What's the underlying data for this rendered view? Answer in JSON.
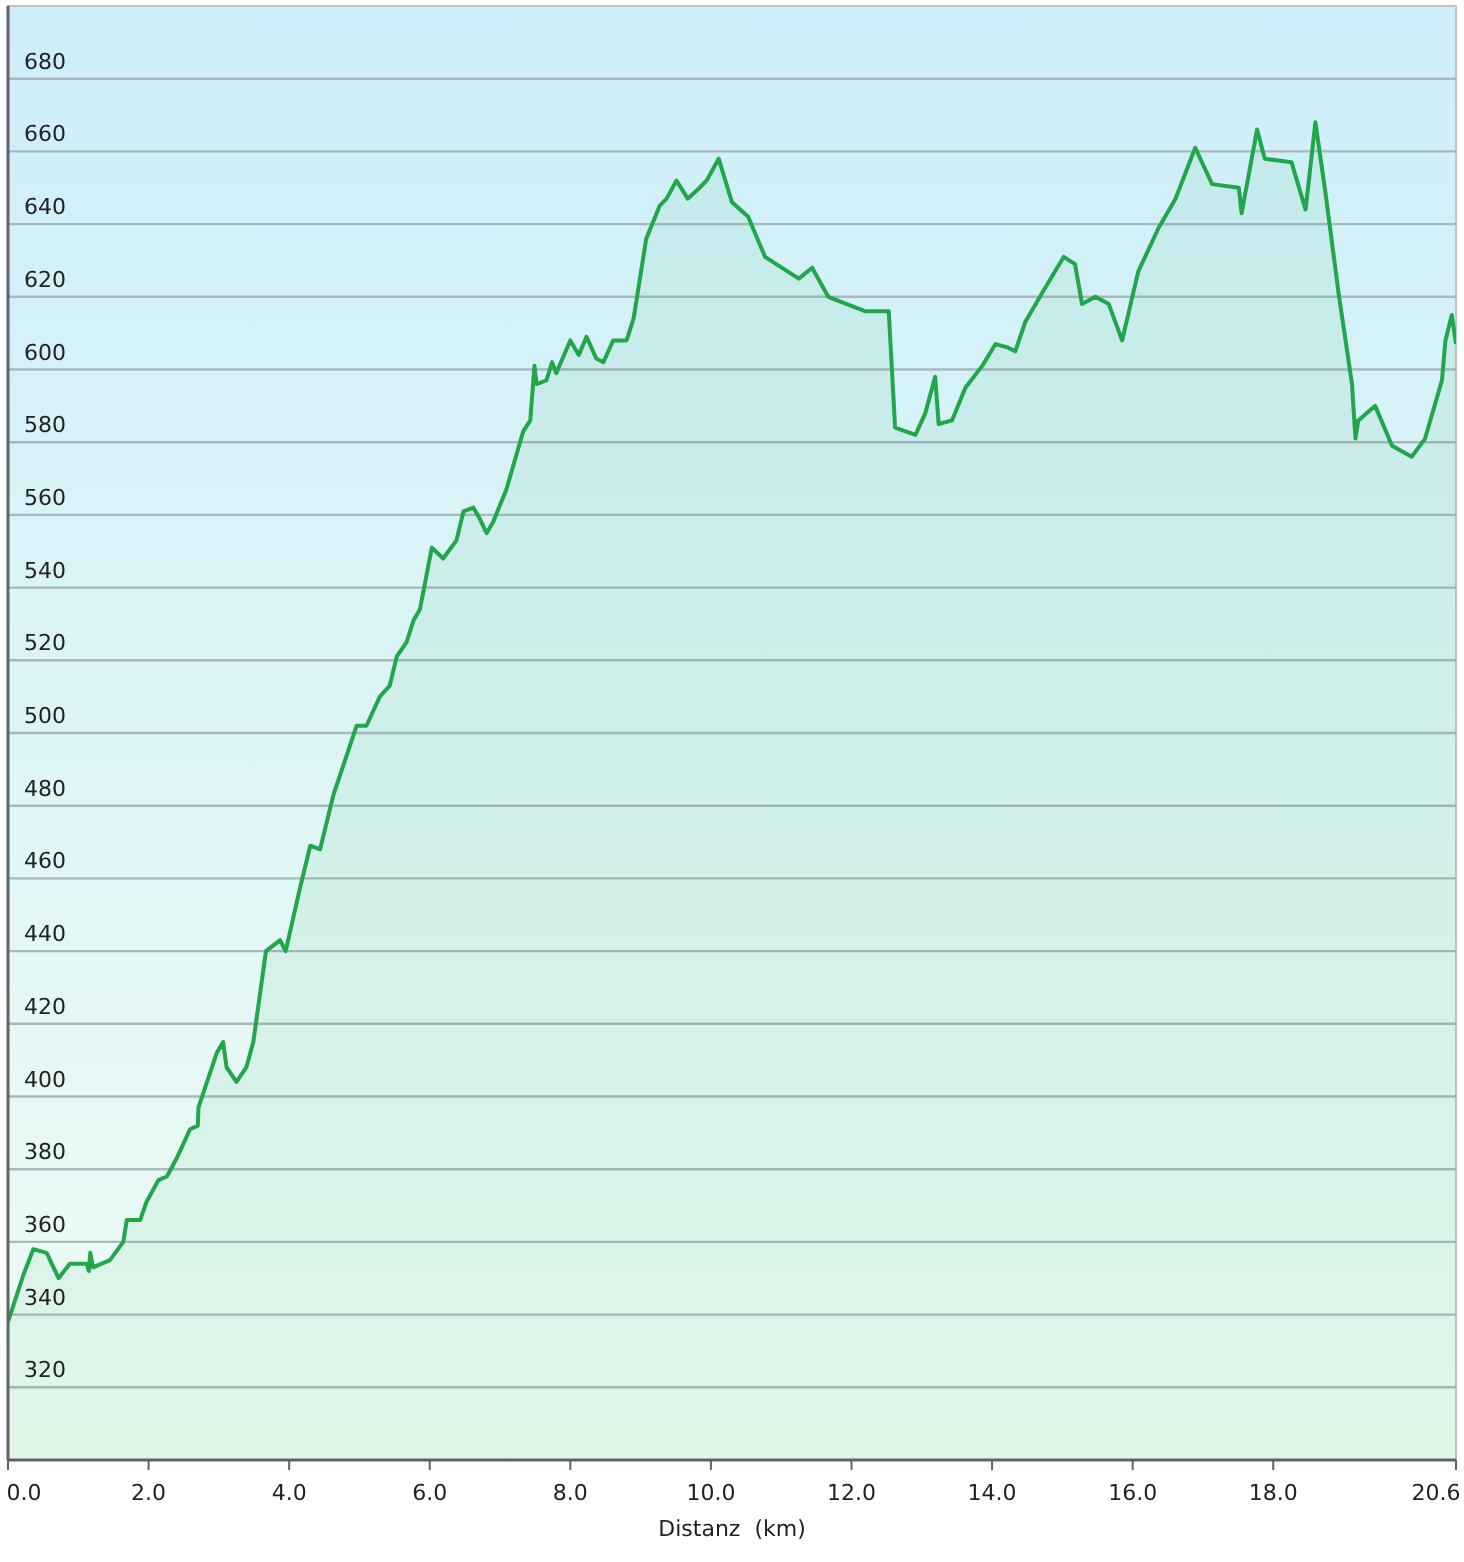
{
  "chart_data": {
    "type": "area",
    "xlabel": "Distanz  (km)",
    "x": [
      0,
      0.22,
      0.36,
      0.55,
      0.72,
      0.88,
      1.12,
      1.15,
      1.17,
      1.21,
      1.45,
      1.64,
      1.69,
      1.88,
      1.97,
      2.14,
      2.26,
      2.4,
      2.59,
      2.7,
      2.71,
      2.97,
      3.06,
      3.11,
      3.25,
      3.39,
      3.49,
      3.67,
      3.87,
      3.95,
      4.15,
      4.3,
      4.44,
      4.63,
      4.96,
      5.1,
      5.29,
      5.43,
      5.53,
      5.67,
      5.77,
      5.86,
      6.03,
      6.19,
      6.38,
      6.48,
      6.62,
      6.71,
      6.81,
      6.9,
      7.09,
      7.33,
      7.43,
      7.49,
      7.52,
      7.66,
      7.74,
      7.8,
      8,
      8.12,
      8.23,
      8.37,
      8.47,
      8.61,
      8.8,
      8.9,
      9.08,
      9.27,
      9.37,
      9.51,
      9.67,
      9.84,
      9.94,
      10.11,
      10.3,
      10.53,
      10.77,
      11.25,
      11.44,
      11.67,
      12.2,
      12.53,
      12.62,
      12.91,
      13.05,
      13.19,
      13.24,
      13.43,
      13.62,
      13.86,
      14.05,
      14.23,
      14.33,
      14.47,
      14.71,
      15.02,
      15.18,
      15.28,
      15.47,
      15.66,
      15.85,
      16.08,
      16.37,
      16.61,
      16.89,
      17.13,
      17.51,
      17.55,
      17.77,
      17.88,
      18.26,
      18.46,
      18.6,
      18.74,
      18.93,
      19.12,
      19.17,
      19.21,
      19.45,
      19.69,
      19.97,
      20.16,
      20.4,
      20.45,
      20.54,
      20.6
    ],
    "series": [
      {
        "color": "#22a64a",
        "values": [
          338,
          351,
          358,
          357,
          350,
          354,
          354,
          352,
          357,
          353,
          355,
          360,
          366,
          366,
          371,
          377,
          378,
          383,
          391,
          392,
          397,
          412,
          415,
          408,
          404,
          408,
          415,
          440,
          443,
          440,
          457,
          469,
          468,
          483,
          502,
          502,
          510,
          513,
          521,
          525,
          531,
          534,
          551,
          548,
          553,
          561,
          562,
          559,
          555,
          558,
          567,
          583,
          586,
          601,
          596,
          597,
          602,
          599,
          608,
          604,
          609,
          603,
          602,
          608,
          608,
          614,
          636,
          645,
          647,
          652,
          647,
          650,
          652,
          658,
          646,
          642,
          631,
          625,
          628,
          620,
          616,
          616,
          584,
          582,
          588,
          598,
          585,
          586,
          595,
          601,
          607,
          606,
          605,
          613,
          621,
          631,
          629,
          618,
          620,
          618,
          608,
          627,
          639,
          647,
          661,
          651,
          650,
          643,
          666,
          658,
          657,
          644,
          668,
          649,
          621,
          596,
          581,
          586,
          590,
          579,
          576,
          581,
          597,
          608,
          615,
          607
        ]
      }
    ],
    "xlim": [
      0,
      20.6
    ],
    "ylim": [
      300,
      700
    ],
    "xticks": [
      {
        "value": 0,
        "label": "0.0"
      },
      {
        "value": 2,
        "label": "2.0"
      },
      {
        "value": 4,
        "label": "4.0"
      },
      {
        "value": 6,
        "label": "6.0"
      },
      {
        "value": 8,
        "label": "8.0"
      },
      {
        "value": 10,
        "label": "10.0"
      },
      {
        "value": 12,
        "label": "12.0"
      },
      {
        "value": 14,
        "label": "14.0"
      },
      {
        "value": 16,
        "label": "16.0"
      },
      {
        "value": 18,
        "label": "18.0"
      },
      {
        "value": 20.6,
        "label": "20.6"
      }
    ],
    "yticks": [
      320,
      340,
      360,
      380,
      400,
      420,
      440,
      460,
      480,
      500,
      520,
      540,
      560,
      580,
      600,
      620,
      640,
      660,
      680
    ],
    "grid": "y"
  }
}
